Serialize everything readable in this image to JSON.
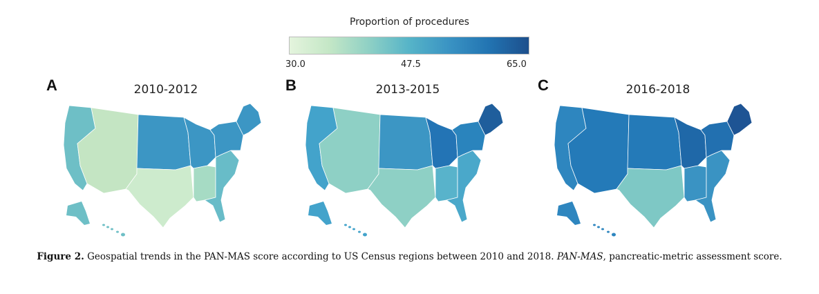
{
  "legend": {
    "title": "Proportion of procedures",
    "ticks": [
      "30.0",
      "47.5",
      "65.0"
    ],
    "min": 30.0,
    "max": 65.0,
    "colors": [
      "#e4f4dd",
      "#c4e7c6",
      "#8ed0c5",
      "#56b4c8",
      "#3a93c3",
      "#2274b2",
      "#1d4f8c"
    ]
  },
  "panels": [
    {
      "letter": "A",
      "title": "2010-2012",
      "regions": {
        "pacific": "#6ebfc6",
        "mountain": "#c4e5c3",
        "wnc": "#3c96c4",
        "wsc": "#cdebcd",
        "enc": "#3c96c4",
        "esc": "#a6dbc4",
        "sa": "#68bcc8",
        "ma": "#3c96c4",
        "ne": "#3c96c4"
      }
    },
    {
      "letter": "B",
      "title": "2013-2015",
      "regions": {
        "pacific": "#43a3cb",
        "mountain": "#8ed0c5",
        "wnc": "#3c96c4",
        "wsc": "#8ed0c5",
        "enc": "#2374b5",
        "esc": "#58b3cb",
        "sa": "#4aa8ca",
        "ma": "#2a84bd",
        "ne": "#1f5e9c"
      }
    },
    {
      "letter": "C",
      "title": "2016-2018",
      "regions": {
        "pacific": "#2e86bf",
        "mountain": "#247ab8",
        "wnc": "#247ab8",
        "wsc": "#7ec8c5",
        "enc": "#1f68a8",
        "esc": "#3a93c3",
        "sa": "#3a93c3",
        "ma": "#2270b0",
        "ne": "#1e5494"
      }
    }
  ],
  "caption": {
    "label": "Figure 2.",
    "text1": "Geospatial trends in the PAN-MAS score according to US Census regions between 2010 and 2018.",
    "abbr": "PAN-MAS",
    "text2": ", pancreatic-metric assessment score."
  }
}
